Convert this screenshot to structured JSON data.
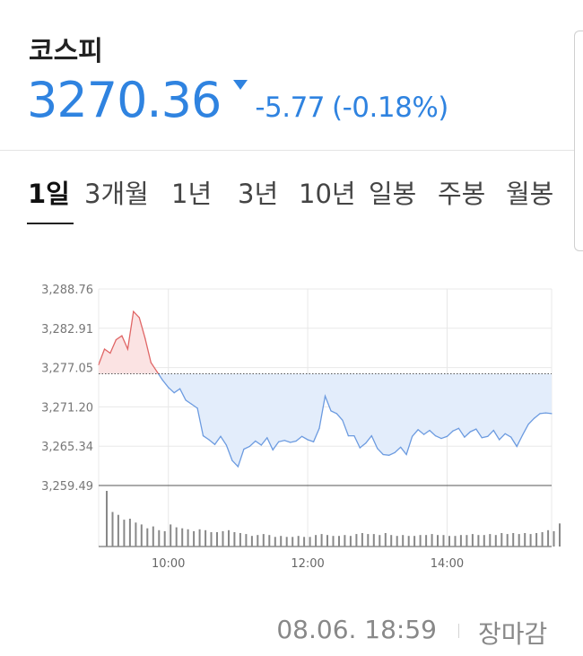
{
  "header": {
    "index_name": "코스피",
    "price": "3270.36",
    "change": "-5.77",
    "change_rate": "(-0.18%)"
  },
  "tabs": [
    "1일",
    "3개월",
    "1년",
    "3년",
    "10년",
    "일봉",
    "주봉",
    "월봉"
  ],
  "active_tab": "1일",
  "footer": {
    "timestamp": "08.06. 18:59",
    "status": "장마감"
  },
  "colors": {
    "up": "#e06666",
    "down": "#6c9be0",
    "accent": "#2f83e0"
  },
  "chart_data": {
    "type": "area",
    "title": "",
    "xlabel": "",
    "ylabel": "",
    "ytick_labels": [
      "3,288.76",
      "3,282.91",
      "3,277.05",
      "3,271.20",
      "3,265.34",
      "3,259.49"
    ],
    "yticks": [
      3288.76,
      3282.91,
      3277.05,
      3271.2,
      3265.34,
      3259.49
    ],
    "ylim": [
      3259.49,
      3288.76
    ],
    "xtick_labels": [
      "10:00",
      "12:00",
      "14:00"
    ],
    "xticks": [
      "10:00",
      "12:00",
      "14:00"
    ],
    "xlim": [
      "09:00",
      "15:30"
    ],
    "baseline": 3276.13,
    "grid": true,
    "series": [
      {
        "x": [
          "09:00",
          "09:05",
          "09:10",
          "09:15",
          "09:20",
          "09:25",
          "09:30",
          "09:35",
          "09:40",
          "09:45",
          "09:50",
          "09:55",
          "10:00",
          "10:05",
          "10:10",
          "10:15",
          "10:20",
          "10:25",
          "10:30",
          "10:35",
          "10:40",
          "10:45",
          "10:50",
          "10:55",
          "11:00",
          "11:05",
          "11:10",
          "11:15",
          "11:20",
          "11:25",
          "11:30",
          "11:35",
          "11:40",
          "11:45",
          "11:50",
          "11:55",
          "12:00",
          "12:05",
          "12:10",
          "12:15",
          "12:20",
          "12:25",
          "12:30",
          "12:35",
          "12:40",
          "12:45",
          "12:50",
          "12:55",
          "13:00",
          "13:05",
          "13:10",
          "13:15",
          "13:20",
          "13:25",
          "13:30",
          "13:35",
          "13:40",
          "13:45",
          "13:50",
          "13:55",
          "14:00",
          "14:05",
          "14:10",
          "14:15",
          "14:20",
          "14:25",
          "14:30",
          "14:35",
          "14:40",
          "14:45",
          "14:50",
          "14:55",
          "15:00",
          "15:05",
          "15:10",
          "15:15",
          "15:20",
          "15:25",
          "15:30"
        ],
        "values": [
          3277.5,
          3279.8,
          3279.2,
          3281.2,
          3281.8,
          3279.8,
          3285.4,
          3284.5,
          3281.4,
          3277.8,
          3276.5,
          3275.2,
          3274.1,
          3273.3,
          3273.9,
          3272.2,
          3271.6,
          3271.0,
          3266.9,
          3266.3,
          3265.6,
          3266.8,
          3265.5,
          3263.2,
          3262.3,
          3264.9,
          3265.3,
          3266.1,
          3265.5,
          3266.6,
          3264.8,
          3266.0,
          3266.2,
          3265.9,
          3266.1,
          3266.8,
          3266.3,
          3266.0,
          3268.0,
          3272.8,
          3270.6,
          3270.2,
          3269.2,
          3266.9,
          3266.9,
          3265.1,
          3265.8,
          3266.9,
          3265.0,
          3264.1,
          3264.0,
          3264.4,
          3265.2,
          3264.1,
          3266.8,
          3267.8,
          3267.1,
          3267.7,
          3266.9,
          3266.5,
          3266.8,
          3267.6,
          3268.0,
          3266.7,
          3267.5,
          3267.9,
          3266.6,
          3266.8,
          3267.7,
          3266.3,
          3267.2,
          3266.7,
          3265.3,
          3267.0,
          3268.6,
          3269.5,
          3270.2,
          3270.3,
          3270.2
        ]
      }
    ],
    "volume": [
      58,
      36,
      33,
      28,
      29,
      25,
      23,
      19,
      21,
      17,
      16,
      23,
      20,
      19,
      18,
      16,
      18,
      17,
      15,
      15,
      16,
      17,
      15,
      14,
      13,
      11,
      12,
      13,
      12,
      10,
      11,
      10,
      10,
      11,
      10,
      10,
      12,
      13,
      12,
      11,
      11,
      12,
      11,
      13,
      14,
      13,
      13,
      12,
      14,
      12,
      11,
      12,
      11,
      11,
      12,
      12,
      13,
      12,
      12,
      11,
      11,
      12,
      12,
      13,
      12,
      12,
      13,
      12,
      14,
      13,
      14,
      13,
      14,
      13,
      14,
      15,
      17,
      16,
      24
    ]
  }
}
